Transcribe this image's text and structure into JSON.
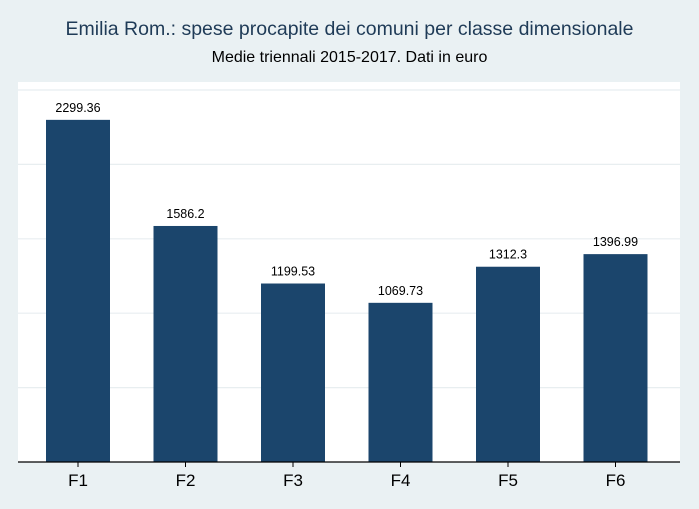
{
  "chart_data": {
    "type": "bar",
    "title": "Emilia Rom.: spese procapite dei comuni per classe dimensionale",
    "subtitle": "Medie triennali 2015-2017. Dati in euro",
    "categories": [
      "F1",
      "F2",
      "F3",
      "F4",
      "F5",
      "F6"
    ],
    "values": [
      2299.36,
      1586.2,
      1199.53,
      1069.73,
      1312.3,
      1396.99
    ],
    "value_labels": [
      "2299.36",
      "1586.2",
      "1199.53",
      "1069.73",
      "1312.3",
      "1396.99"
    ],
    "xlabel": "",
    "ylabel": "",
    "ylim": [
      0,
      2500
    ],
    "grid": true,
    "legend": "none",
    "colors": {
      "bar": "#1b456c",
      "background": "#eaf1f3",
      "plot_background": "#ffffff",
      "grid": "#e8eef0",
      "title": "#1f3b57"
    }
  }
}
